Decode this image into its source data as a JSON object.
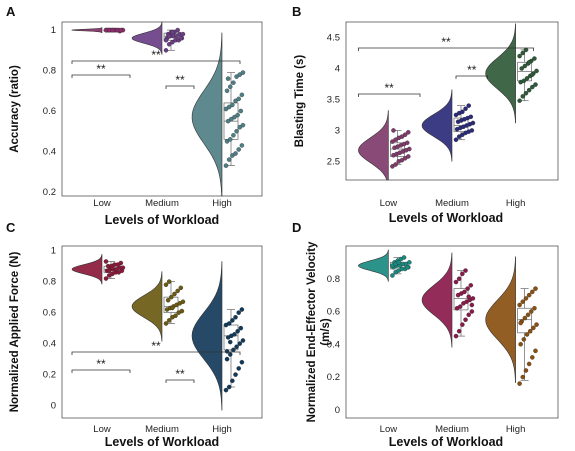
{
  "chart_data": [
    {
      "panel": "A",
      "type": "raincloud",
      "xlabel": "Levels of Workload",
      "ylabel": "Accuracy (ratio)",
      "categories": [
        "Low",
        "Medium",
        "High"
      ],
      "yticks": [
        "0.2",
        "0.4",
        "0.6",
        "0.8",
        "1"
      ],
      "ylim": [
        0.18,
        1.04
      ],
      "grid": false,
      "colors": [
        "#8a2d6a",
        "#6a3f86",
        "#4f7f86"
      ],
      "series": [
        {
          "mean": 1.0,
          "sd": 0.004,
          "box": [
            0.995,
            1.0,
            1.0,
            1.0,
            1.0
          ],
          "points": [
            1.0,
            1.0,
            1.0,
            1.0,
            1.0,
            1.0,
            1.0,
            1.0,
            1.0,
            1.0,
            0.995,
            1.0,
            1.0,
            1.0,
            1.0,
            1.0,
            1.0,
            1.0,
            1.0,
            1.0
          ]
        },
        {
          "mean": 0.96,
          "sd": 0.025,
          "box": [
            0.9,
            0.95,
            0.97,
            0.985,
            1.0
          ],
          "points": [
            0.9,
            0.93,
            0.94,
            0.95,
            0.95,
            0.96,
            0.96,
            0.97,
            0.97,
            0.97,
            0.98,
            0.98,
            0.98,
            0.99,
            0.99,
            1.0,
            0.96,
            0.95,
            0.97,
            0.99
          ]
        },
        {
          "mean": 0.57,
          "sd": 0.13,
          "box": [
            0.33,
            0.46,
            0.55,
            0.64,
            0.79
          ],
          "points": [
            0.33,
            0.36,
            0.38,
            0.39,
            0.41,
            0.43,
            0.45,
            0.46,
            0.48,
            0.5,
            0.52,
            0.53,
            0.55,
            0.56,
            0.57,
            0.58,
            0.6,
            0.61,
            0.62,
            0.63,
            0.65,
            0.66,
            0.68,
            0.7,
            0.72,
            0.74,
            0.77,
            0.78,
            0.79,
            0.76
          ]
        }
      ],
      "annotations": [
        {
          "from": "Low",
          "to": "High",
          "label": "**"
        },
        {
          "from": "Low",
          "to": "Medium",
          "label": "**"
        },
        {
          "from": "Medium",
          "to": "High",
          "label": "**"
        }
      ]
    },
    {
      "panel": "B",
      "type": "raincloud",
      "xlabel": "Levels of Workload",
      "ylabel": "Blasting Time (s)",
      "categories": [
        "Low",
        "Medium",
        "High"
      ],
      "yticks": [
        "2.5",
        "3",
        "3.5",
        "4",
        "4.5"
      ],
      "ylim": [
        2.2,
        4.75
      ],
      "grid": false,
      "colors": [
        "#7f3b6b",
        "#2b2b7a",
        "#2f5a38"
      ],
      "series": [
        {
          "mean": 2.68,
          "sd": 0.2,
          "box": [
            2.45,
            2.58,
            2.7,
            2.8,
            3.0
          ],
          "points": [
            2.42,
            2.45,
            2.5,
            2.52,
            2.55,
            2.58,
            2.6,
            2.62,
            2.64,
            2.66,
            2.68,
            2.7,
            2.72,
            2.74,
            2.76,
            2.78,
            2.8,
            2.82,
            2.85,
            2.88,
            2.9,
            2.93,
            2.97,
            3.0
          ]
        },
        {
          "mean": 3.08,
          "sd": 0.18,
          "box": [
            2.85,
            2.98,
            3.08,
            3.2,
            3.4
          ],
          "points": [
            2.85,
            2.9,
            2.93,
            2.96,
            2.98,
            3.0,
            3.02,
            3.04,
            3.06,
            3.08,
            3.1,
            3.12,
            3.14,
            3.16,
            3.18,
            3.2,
            3.22,
            3.25,
            3.28,
            3.3,
            3.35,
            3.4
          ]
        },
        {
          "mean": 3.92,
          "sd": 0.25,
          "box": [
            3.48,
            3.8,
            3.95,
            4.1,
            4.3
          ],
          "points": [
            3.48,
            3.55,
            3.6,
            3.65,
            3.7,
            3.74,
            3.78,
            3.8,
            3.84,
            3.88,
            3.92,
            3.96,
            4.0,
            4.04,
            4.08,
            4.12,
            4.16,
            4.2,
            4.25,
            4.3,
            4.1,
            3.9
          ]
        }
      ],
      "annotations": [
        {
          "from": "Low",
          "to": "High",
          "label": "**"
        },
        {
          "from": "Low",
          "to": "Medium",
          "label": "**"
        },
        {
          "from": "Medium",
          "to": "High",
          "label": "**"
        }
      ]
    },
    {
      "panel": "C",
      "type": "raincloud",
      "xlabel": "Levels of Workload",
      "ylabel": "Normalized Applied Force (N)",
      "categories": [
        "Low",
        "Medium",
        "High"
      ],
      "yticks": [
        "0",
        "0.2",
        "0.4",
        "0.6",
        "0.8",
        "1"
      ],
      "ylim": [
        -0.08,
        1.03
      ],
      "grid": false,
      "colors": [
        "#8b1a3a",
        "#6b5a12",
        "#123a5a"
      ],
      "series": [
        {
          "mean": 0.88,
          "sd": 0.03,
          "box": [
            0.82,
            0.86,
            0.88,
            0.9,
            0.93
          ],
          "points": [
            0.82,
            0.84,
            0.85,
            0.86,
            0.86,
            0.87,
            0.87,
            0.88,
            0.88,
            0.88,
            0.89,
            0.89,
            0.9,
            0.9,
            0.91,
            0.91,
            0.92,
            0.93,
            0.87,
            0.89
          ]
        },
        {
          "mean": 0.64,
          "sd": 0.07,
          "box": [
            0.53,
            0.6,
            0.64,
            0.7,
            0.8
          ],
          "points": [
            0.53,
            0.55,
            0.57,
            0.58,
            0.6,
            0.61,
            0.62,
            0.63,
            0.64,
            0.65,
            0.66,
            0.67,
            0.68,
            0.7,
            0.72,
            0.74,
            0.76,
            0.78,
            0.8,
            0.63
          ]
        },
        {
          "mean": 0.45,
          "sd": 0.15,
          "box": [
            0.12,
            0.36,
            0.45,
            0.52,
            0.62
          ],
          "points": [
            0.1,
            0.12,
            0.16,
            0.2,
            0.24,
            0.28,
            0.3,
            0.33,
            0.36,
            0.38,
            0.4,
            0.42,
            0.44,
            0.45,
            0.46,
            0.48,
            0.5,
            0.52,
            0.53,
            0.55,
            0.57,
            0.6,
            0.62,
            0.35,
            0.41
          ]
        }
      ],
      "annotations": [
        {
          "from": "Low",
          "to": "High",
          "label": "**"
        },
        {
          "from": "Low",
          "to": "Medium",
          "label": "**"
        },
        {
          "from": "Medium",
          "to": "High",
          "label": "**"
        }
      ]
    },
    {
      "panel": "D",
      "type": "raincloud",
      "xlabel": "Levels of Workload",
      "ylabel": "Normalized End-Effector Velocity (m/s)",
      "categories": [
        "Low",
        "Medium",
        "High"
      ],
      "yticks": [
        "0",
        "0.2",
        "0.4",
        "0.6",
        "0.8"
      ],
      "ylim": [
        -0.05,
        1.0
      ],
      "grid": false,
      "colors": [
        "#1a8a80",
        "#8a1a4a",
        "#8a5010"
      ],
      "series": [
        {
          "mean": 0.88,
          "sd": 0.03,
          "box": [
            0.83,
            0.86,
            0.88,
            0.9,
            0.93
          ],
          "points": [
            0.82,
            0.84,
            0.85,
            0.86,
            0.86,
            0.87,
            0.87,
            0.88,
            0.88,
            0.89,
            0.89,
            0.9,
            0.9,
            0.91,
            0.92,
            0.93,
            0.87,
            0.88,
            0.89,
            0.9
          ]
        },
        {
          "mean": 0.67,
          "sd": 0.09,
          "box": [
            0.45,
            0.61,
            0.68,
            0.74,
            0.85
          ],
          "points": [
            0.45,
            0.48,
            0.52,
            0.55,
            0.58,
            0.6,
            0.62,
            0.63,
            0.65,
            0.66,
            0.67,
            0.68,
            0.7,
            0.71,
            0.72,
            0.74,
            0.76,
            0.78,
            0.8,
            0.83,
            0.85,
            0.69,
            0.64
          ]
        },
        {
          "mean": 0.55,
          "sd": 0.12,
          "box": [
            0.18,
            0.47,
            0.55,
            0.62,
            0.74
          ],
          "points": [
            0.16,
            0.2,
            0.24,
            0.28,
            0.32,
            0.36,
            0.4,
            0.43,
            0.46,
            0.48,
            0.5,
            0.52,
            0.54,
            0.56,
            0.58,
            0.6,
            0.62,
            0.64,
            0.66,
            0.68,
            0.7,
            0.72,
            0.74,
            0.53
          ]
        }
      ],
      "annotations": []
    }
  ]
}
